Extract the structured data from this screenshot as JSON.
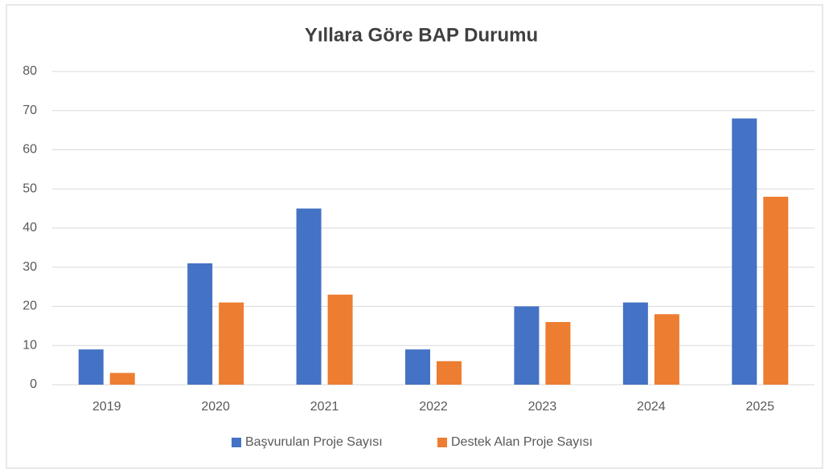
{
  "chart_data": {
    "type": "bar",
    "title": "Yıllara Göre BAP Durumu",
    "categories": [
      "2019",
      "2020",
      "2021",
      "2022",
      "2023",
      "2024",
      "2025"
    ],
    "series": [
      {
        "name": "Başvurulan Proje Sayısı",
        "color": "#4472c4",
        "values": [
          9,
          31,
          45,
          9,
          20,
          21,
          68
        ]
      },
      {
        "name": "Destek Alan Proje Sayısı",
        "color": "#ed7d31",
        "values": [
          3,
          21,
          23,
          6,
          16,
          18,
          48
        ]
      }
    ],
    "ylim": [
      0,
      80
    ],
    "yticks": [
      0,
      10,
      20,
      30,
      40,
      50,
      60,
      70,
      80
    ],
    "grid": true,
    "legend": "bottom"
  }
}
